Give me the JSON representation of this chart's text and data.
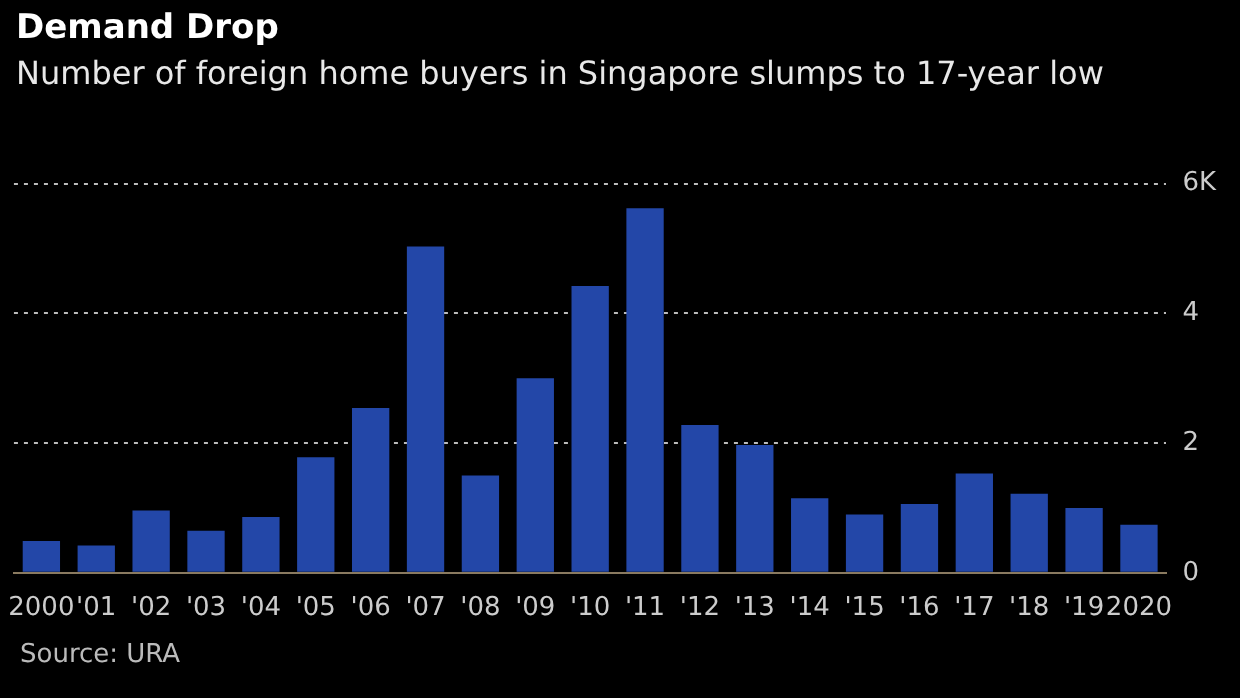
{
  "chart_data": {
    "type": "bar",
    "title": "Demand Drop",
    "subtitle": "Number of foreign home buyers in Singapore slumps to 17-year low",
    "categories": [
      "2000",
      "'01",
      "'02",
      "'03",
      "'04",
      "'05",
      "'06",
      "'07",
      "'08",
      "'09",
      "'10",
      "'11",
      "'12",
      "'13",
      "'14",
      "'15",
      "'16",
      "'17",
      "'18",
      "'19",
      "2020"
    ],
    "values": [
      0.49,
      0.42,
      0.96,
      0.65,
      0.86,
      1.78,
      2.54,
      5.03,
      1.5,
      3.0,
      4.42,
      5.62,
      2.28,
      1.97,
      1.15,
      0.9,
      1.06,
      1.53,
      1.22,
      1.0,
      0.74
    ],
    "color": "#2347a8",
    "ylim": [
      0,
      6
    ],
    "yticks": [
      0,
      2,
      4,
      {
        "value": 6,
        "label": "6K"
      }
    ],
    "grid": "y",
    "annotations": [
      "Source: URA"
    ]
  }
}
